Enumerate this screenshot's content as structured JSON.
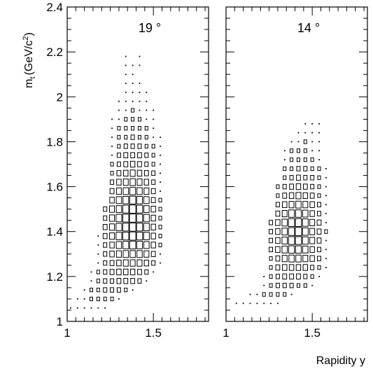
{
  "chart_data": [
    {
      "type": "heatmap",
      "title": "19 °",
      "xlabel": "",
      "ylabel": "m",
      "ylabel_sub": "t",
      "ylabel_unit": "(GeV/c",
      "ylabel_sup": "2",
      "ylabel_close": ")",
      "xlim": [
        1.0,
        1.82
      ],
      "ylim": [
        1.0,
        2.4
      ],
      "x_ticks": [
        {
          "value": 1,
          "label": "1"
        },
        {
          "value": 1.5,
          "label": "1.5"
        }
      ],
      "y_ticks": [
        {
          "value": 1,
          "label": "1"
        },
        {
          "value": 1.2,
          "label": "1.2"
        },
        {
          "value": 1.4,
          "label": "1.4"
        },
        {
          "value": 1.6,
          "label": "1.6"
        },
        {
          "value": 1.8,
          "label": "1.8"
        },
        {
          "value": 2,
          "label": "2"
        },
        {
          "value": 2.2,
          "label": "2.2"
        },
        {
          "value": 2.4,
          "label": "2.4"
        }
      ],
      "x_bin_start": 1.0,
      "x_bin_width": 0.04,
      "y_bin_width": 0.04,
      "rows": [
        {
          "y": 1.06,
          "x_start": 1.0,
          "values": [
            1,
            1,
            1,
            1,
            1,
            1
          ]
        },
        {
          "y": 1.1,
          "x_start": 1.04,
          "values": [
            1,
            1,
            2,
            2,
            2,
            2,
            1
          ]
        },
        {
          "y": 1.14,
          "x_start": 1.08,
          "values": [
            1,
            2,
            2,
            3,
            3,
            3,
            2,
            1
          ]
        },
        {
          "y": 1.18,
          "x_start": 1.12,
          "values": [
            1,
            2,
            3,
            3,
            4,
            4,
            4,
            3,
            1
          ]
        },
        {
          "y": 1.22,
          "x_start": 1.12,
          "values": [
            1,
            2,
            3,
            4,
            5,
            5,
            5,
            4,
            3,
            1
          ]
        },
        {
          "y": 1.26,
          "x_start": 1.16,
          "values": [
            1,
            3,
            4,
            5,
            6,
            6,
            6,
            5,
            3,
            1
          ]
        },
        {
          "y": 1.3,
          "x_start": 1.16,
          "values": [
            1,
            3,
            5,
            6,
            7,
            7,
            7,
            6,
            4,
            1
          ]
        },
        {
          "y": 1.34,
          "x_start": 1.16,
          "values": [
            1,
            3,
            5,
            7,
            8,
            9,
            8,
            7,
            5,
            2
          ]
        },
        {
          "y": 1.38,
          "x_start": 1.16,
          "values": [
            1,
            4,
            6,
            8,
            9,
            10,
            9,
            8,
            5,
            2
          ]
        },
        {
          "y": 1.42,
          "x_start": 1.2,
          "values": [
            4,
            6,
            8,
            9,
            10,
            9,
            8,
            5,
            2
          ]
        },
        {
          "y": 1.46,
          "x_start": 1.2,
          "values": [
            3,
            6,
            8,
            9,
            10,
            9,
            8,
            5,
            2
          ]
        },
        {
          "y": 1.5,
          "x_start": 1.2,
          "values": [
            3,
            6,
            7,
            9,
            10,
            9,
            7,
            5,
            2
          ]
        },
        {
          "y": 1.54,
          "x_start": 1.24,
          "values": [
            5,
            7,
            8,
            9,
            8,
            7,
            4,
            2
          ]
        },
        {
          "y": 1.58,
          "x_start": 1.24,
          "values": [
            4,
            6,
            7,
            8,
            7,
            6,
            4,
            1
          ]
        },
        {
          "y": 1.62,
          "x_start": 1.24,
          "values": [
            3,
            5,
            6,
            7,
            6,
            5,
            3,
            1
          ]
        },
        {
          "y": 1.66,
          "x_start": 1.24,
          "values": [
            2,
            4,
            5,
            6,
            5,
            4,
            3,
            1
          ]
        },
        {
          "y": 1.7,
          "x_start": 1.24,
          "values": [
            2,
            3,
            4,
            5,
            4,
            3,
            2,
            1
          ]
        },
        {
          "y": 1.74,
          "x_start": 1.24,
          "values": [
            1,
            3,
            4,
            4,
            4,
            3,
            2,
            1
          ]
        },
        {
          "y": 1.78,
          "x_start": 1.24,
          "values": [
            1,
            2,
            3,
            3,
            3,
            2,
            2,
            1
          ]
        },
        {
          "y": 1.82,
          "x_start": 1.24,
          "values": [
            1,
            2,
            2,
            3,
            2,
            2,
            1,
            1
          ]
        },
        {
          "y": 1.86,
          "x_start": 1.24,
          "values": [
            1,
            2,
            2,
            2,
            2,
            2,
            1
          ]
        },
        {
          "y": 1.9,
          "x_start": 1.24,
          "values": [
            1,
            1,
            2,
            2,
            2,
            1,
            1
          ]
        },
        {
          "y": 1.94,
          "x_start": 1.28,
          "values": [
            1,
            1,
            2,
            1,
            1,
            1
          ]
        },
        {
          "y": 1.98,
          "x_start": 1.28,
          "values": [
            1,
            1,
            1,
            1,
            1
          ]
        },
        {
          "y": 2.02,
          "x_start": 1.32,
          "values": [
            1,
            1,
            1,
            1
          ]
        },
        {
          "y": 2.06,
          "x_start": 1.32,
          "values": [
            1,
            1,
            1
          ]
        },
        {
          "y": 2.1,
          "x_start": 1.32,
          "values": [
            1,
            1
          ]
        },
        {
          "y": 2.14,
          "x_start": 1.32,
          "values": [
            1,
            1,
            1
          ]
        },
        {
          "y": 2.18,
          "x_start": 1.32,
          "values": [
            1,
            0,
            1
          ]
        }
      ]
    },
    {
      "type": "heatmap",
      "title": "14 °",
      "xlabel": "Rapidity y",
      "ylabel": "",
      "xlim": [
        1.0,
        1.82
      ],
      "ylim": [
        1.0,
        2.4
      ],
      "x_ticks": [
        {
          "value": 1,
          "label": "1"
        },
        {
          "value": 1.5,
          "label": "1.5"
        }
      ],
      "y_ticks": [
        {
          "value": 1,
          "label": ""
        },
        {
          "value": 1.2,
          "label": ""
        },
        {
          "value": 1.4,
          "label": ""
        },
        {
          "value": 1.6,
          "label": ""
        },
        {
          "value": 1.8,
          "label": ""
        },
        {
          "value": 2,
          "label": ""
        },
        {
          "value": 2.2,
          "label": ""
        },
        {
          "value": 2.4,
          "label": ""
        }
      ],
      "x_bin_start": 1.0,
      "x_bin_width": 0.04,
      "y_bin_width": 0.04,
      "rows": [
        {
          "y": 1.08,
          "x_start": 1.04,
          "values": [
            1,
            1,
            1,
            1,
            1,
            1,
            1
          ]
        },
        {
          "y": 1.12,
          "x_start": 1.12,
          "values": [
            1,
            1,
            2,
            2,
            2,
            2,
            1
          ]
        },
        {
          "y": 1.16,
          "x_start": 1.2,
          "values": [
            1,
            2,
            3,
            3,
            3,
            2,
            2,
            1
          ]
        },
        {
          "y": 1.2,
          "x_start": 1.2,
          "values": [
            1,
            2,
            3,
            4,
            4,
            4,
            3,
            2,
            1
          ]
        },
        {
          "y": 1.24,
          "x_start": 1.24,
          "values": [
            2,
            4,
            5,
            5,
            5,
            5,
            3,
            2,
            1
          ]
        },
        {
          "y": 1.28,
          "x_start": 1.24,
          "values": [
            2,
            4,
            6,
            7,
            7,
            6,
            5,
            3,
            1
          ]
        },
        {
          "y": 1.32,
          "x_start": 1.24,
          "values": [
            3,
            5,
            7,
            8,
            8,
            7,
            5,
            3,
            1
          ]
        },
        {
          "y": 1.36,
          "x_start": 1.24,
          "values": [
            3,
            5,
            7,
            9,
            9,
            8,
            6,
            4,
            1
          ]
        },
        {
          "y": 1.4,
          "x_start": 1.24,
          "values": [
            3,
            5,
            7,
            9,
            10,
            8,
            6,
            4,
            2
          ]
        },
        {
          "y": 1.44,
          "x_start": 1.24,
          "values": [
            3,
            5,
            7,
            9,
            9,
            8,
            6,
            4,
            1
          ]
        },
        {
          "y": 1.48,
          "x_start": 1.28,
          "values": [
            4,
            6,
            8,
            8,
            7,
            5,
            3,
            1
          ]
        },
        {
          "y": 1.52,
          "x_start": 1.28,
          "values": [
            3,
            5,
            6,
            7,
            6,
            5,
            3,
            1
          ]
        },
        {
          "y": 1.56,
          "x_start": 1.28,
          "values": [
            2,
            4,
            5,
            6,
            5,
            4,
            2,
            1
          ]
        },
        {
          "y": 1.6,
          "x_start": 1.28,
          "values": [
            2,
            3,
            4,
            5,
            4,
            3,
            2,
            1
          ]
        },
        {
          "y": 1.64,
          "x_start": 1.32,
          "values": [
            2,
            3,
            4,
            3,
            3,
            2,
            1
          ]
        },
        {
          "y": 1.68,
          "x_start": 1.32,
          "values": [
            2,
            2,
            3,
            3,
            2,
            2,
            1
          ]
        },
        {
          "y": 1.72,
          "x_start": 1.32,
          "values": [
            1,
            2,
            2,
            2,
            2,
            1
          ]
        },
        {
          "y": 1.76,
          "x_start": 1.32,
          "values": [
            1,
            2,
            2,
            2,
            1,
            1
          ]
        },
        {
          "y": 1.8,
          "x_start": 1.36,
          "values": [
            1,
            1,
            2,
            1,
            1
          ]
        },
        {
          "y": 1.84,
          "x_start": 1.4,
          "values": [
            1,
            1,
            1,
            1
          ]
        },
        {
          "y": 1.88,
          "x_start": 1.44,
          "values": [
            1,
            1,
            1
          ]
        }
      ]
    }
  ]
}
